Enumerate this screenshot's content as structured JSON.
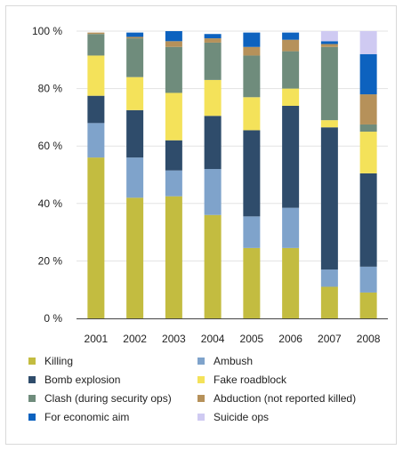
{
  "chart_data": {
    "type": "bar",
    "stacked": true,
    "percent": true,
    "title": "",
    "xlabel": "",
    "ylabel": "",
    "ylim": [
      0,
      100
    ],
    "yticks": [
      "0 %",
      "20 %",
      "40 %",
      "60 %",
      "80 %",
      "100 %"
    ],
    "categories": [
      "2001",
      "2002",
      "2003",
      "2004",
      "2005",
      "2006",
      "2007",
      "2008"
    ],
    "legend_position": "bottom",
    "series": [
      {
        "name": "Killing",
        "color": "#c3bc40",
        "values": [
          56,
          42,
          42.5,
          36,
          24.5,
          24.5,
          11,
          9
        ]
      },
      {
        "name": "Ambush",
        "color": "#7fa3cb",
        "values": [
          12,
          14,
          9,
          16,
          11,
          14,
          6,
          9
        ]
      },
      {
        "name": "Bomb explosion",
        "color": "#2f4c6b",
        "values": [
          9.5,
          16.5,
          10.5,
          18.5,
          30,
          35.5,
          49.5,
          32.5
        ]
      },
      {
        "name": "Fake roadblock",
        "color": "#f4e25a",
        "values": [
          14,
          11.5,
          16.5,
          12.5,
          11.5,
          6,
          2.5,
          14.5
        ]
      },
      {
        "name": "Clash (during security ops)",
        "color": "#6f8c7c",
        "values": [
          7.5,
          13.5,
          16,
          13,
          14.5,
          13,
          25.5,
          2.5
        ]
      },
      {
        "name": "Abduction (not reported killed)",
        "color": "#b6915a",
        "values": [
          0.5,
          0.5,
          2,
          1.5,
          3,
          4,
          1,
          10.5
        ]
      },
      {
        "name": "For economic aim",
        "color": "#0d62bf",
        "values": [
          0,
          1.5,
          3.5,
          1.5,
          5,
          2.5,
          1,
          14
        ]
      },
      {
        "name": "Suicide ops",
        "color": "#cfcaf2",
        "values": [
          0,
          0,
          0,
          0,
          0,
          0,
          3.5,
          8
        ]
      }
    ]
  }
}
